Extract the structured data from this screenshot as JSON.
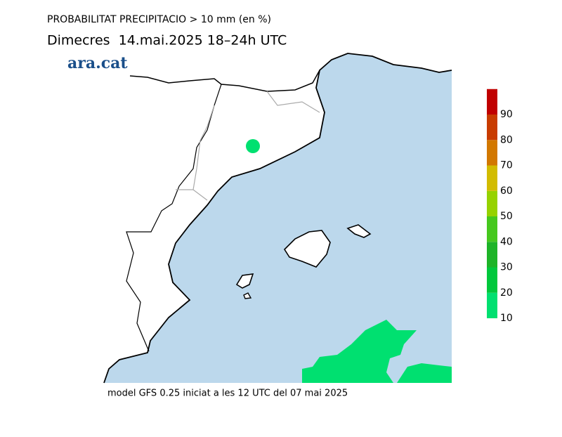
{
  "header": {
    "title": "PROBABILITAT PRECIPITACIO > 10 mm (en %)",
    "subtitle": "Dimecres  14.mai.2025 18–24h UTC"
  },
  "logo": "ara.cat",
  "footer": "model GFS 0.25 iniciat a les 12 UTC del 07 mai 2025",
  "legend": {
    "ticks": [
      10,
      20,
      30,
      40,
      50,
      60,
      70,
      80,
      90
    ],
    "colors": [
      "#00e070",
      "#00c83c",
      "#1eb428",
      "#46c81e",
      "#96d200",
      "#d2bc00",
      "#d27800",
      "#c83c00",
      "#c00000"
    ]
  }
}
